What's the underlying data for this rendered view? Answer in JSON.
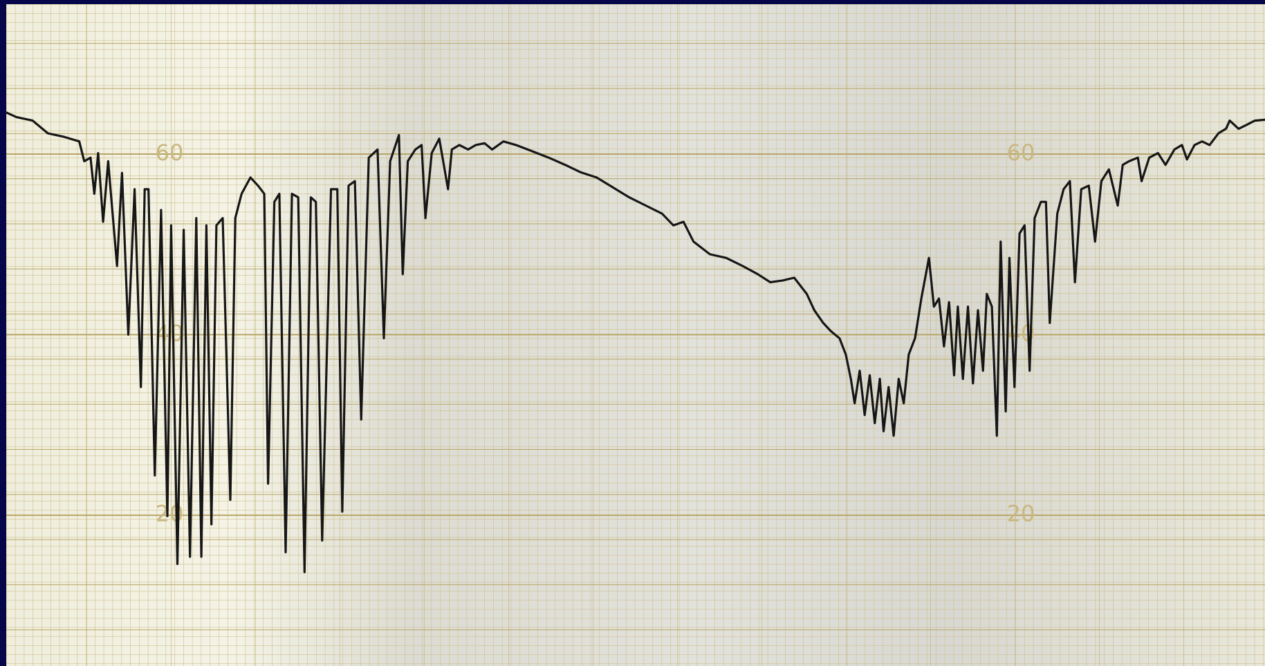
{
  "chart_data": {
    "type": "line",
    "xlim": [
      0,
      100
    ],
    "ylim": [
      3.3,
      76.6
    ],
    "yticks": [
      20,
      40,
      60
    ],
    "grid": true,
    "color": "#161616",
    "x": [
      0,
      0.8,
      2.1,
      3.3,
      4.6,
      5.8,
      6.2,
      6.7,
      7.0,
      7.3,
      7.7,
      8.1,
      8.8,
      9.2,
      9.7,
      10.2,
      10.7,
      11.0,
      11.3,
      11.8,
      12.3,
      12.8,
      13.1,
      13.6,
      14.1,
      14.6,
      15.1,
      15.5,
      15.9,
      16.3,
      16.7,
      17.2,
      17.8,
      18.2,
      18.7,
      19.4,
      20.0,
      20.5,
      20.8,
      21.3,
      21.7,
      22.2,
      22.7,
      23.2,
      23.7,
      24.2,
      24.6,
      25.1,
      25.8,
      26.3,
      26.7,
      27.2,
      27.7,
      28.2,
      28.8,
      29.5,
      30.0,
      30.5,
      31.2,
      31.5,
      31.9,
      32.5,
      33.0,
      33.3,
      33.8,
      34.4,
      35.1,
      35.4,
      36.0,
      36.7,
      37.3,
      38.0,
      38.6,
      39.5,
      40.5,
      41.8,
      43.1,
      44.4,
      45.6,
      46.9,
      48.2,
      49.5,
      50.8,
      52.1,
      53.0,
      53.8,
      54.6,
      55.9,
      57.2,
      58.5,
      59.7,
      60.7,
      61.7,
      62.6,
      63.6,
      64.2,
      64.9,
      65.5,
      66.2,
      66.7,
      67.1,
      67.4,
      67.8,
      68.2,
      68.6,
      69.0,
      69.4,
      69.7,
      70.1,
      70.5,
      70.9,
      71.3,
      71.7,
      72.2,
      72.7,
      73.3,
      73.7,
      74.1,
      74.5,
      74.9,
      75.3,
      75.6,
      76.0,
      76.4,
      76.8,
      77.2,
      77.6,
      77.9,
      78.3,
      78.7,
      79.0,
      79.4,
      79.7,
      80.1,
      80.5,
      80.9,
      81.3,
      81.7,
      82.2,
      82.6,
      82.9,
      83.5,
      84.0,
      84.5,
      84.9,
      85.4,
      86.0,
      86.5,
      87.0,
      87.6,
      88.3,
      88.7,
      89.2,
      89.9,
      90.2,
      90.8,
      91.5,
      92.1,
      92.8,
      93.4,
      93.8,
      94.4,
      95.0,
      95.6,
      96.3,
      96.9,
      97.2,
      97.9,
      98.5,
      99.2,
      100
    ],
    "values": [
      64.6,
      64.1,
      63.7,
      62.3,
      61.9,
      61.4,
      59.2,
      59.6,
      55.6,
      60.1,
      52.5,
      59.2,
      47.6,
      57.9,
      40,
      56.1,
      34.2,
      56.1,
      56.1,
      24.4,
      53.8,
      19.9,
      52.1,
      14.6,
      51.6,
      15.4,
      52.9,
      15.4,
      52.1,
      19.0,
      52.1,
      52.9,
      21.7,
      52.9,
      55.6,
      57.4,
      56.5,
      55.6,
      23.5,
      54.7,
      55.6,
      15.9,
      55.6,
      55.2,
      13.7,
      55.2,
      54.7,
      17.2,
      56.1,
      56.1,
      20.4,
      56.5,
      57.0,
      30.6,
      59.6,
      60.5,
      39.6,
      59.2,
      62.1,
      46.7,
      59.2,
      60.5,
      61.0,
      52.9,
      60.1,
      61.7,
      56.1,
      60.5,
      61.0,
      60.5,
      61.0,
      61.2,
      60.5,
      61.4,
      61.0,
      60.3,
      59.6,
      58.8,
      58.0,
      57.4,
      56.3,
      55.2,
      54.3,
      53.4,
      52.1,
      52.5,
      50.3,
      48.9,
      48.5,
      47.6,
      46.7,
      45.8,
      46.0,
      46.3,
      44.5,
      42.7,
      41.3,
      40.4,
      39.6,
      37.8,
      35.1,
      32.4,
      36.0,
      31.1,
      35.5,
      30.2,
      35.1,
      29.3,
      34.2,
      28.8,
      35.1,
      32.4,
      37.8,
      39.6,
      44.0,
      48.5,
      43.1,
      44.0,
      38.7,
      43.6,
      35.5,
      43.1,
      35.1,
      43.1,
      34.6,
      42.7,
      36.0,
      44.5,
      43.1,
      28.8,
      50.3,
      31.5,
      48.5,
      34.2,
      51.2,
      52.1,
      36.0,
      52.9,
      54.7,
      54.7,
      41.3,
      53.4,
      56.1,
      57.0,
      45.8,
      56.1,
      56.5,
      50.3,
      57.0,
      58.3,
      54.3,
      58.8,
      59.2,
      59.6,
      57.0,
      59.6,
      60.1,
      58.8,
      60.5,
      61.0,
      59.4,
      61.0,
      61.4,
      61.0,
      62.3,
      62.8,
      63.7,
      62.8,
      63.2,
      63.7,
      63.8
    ]
  }
}
